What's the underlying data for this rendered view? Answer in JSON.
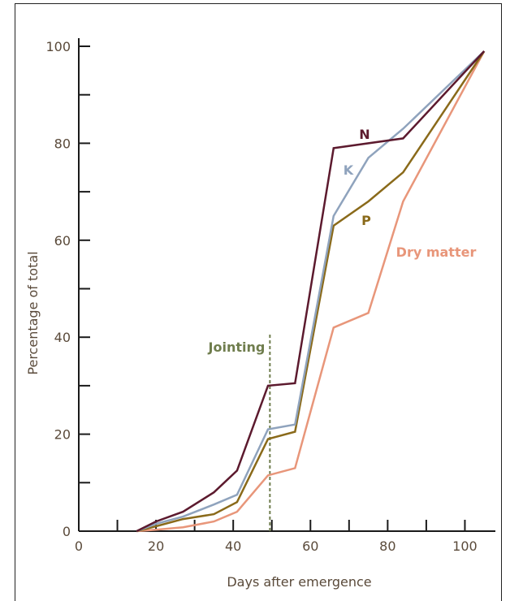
{
  "chart_data": {
    "type": "line",
    "title": "",
    "xlabel": "Days after emergence",
    "ylabel": "Percentage of total",
    "xlim": [
      0,
      110
    ],
    "ylim": [
      0,
      100
    ],
    "xticks": [
      0,
      20,
      40,
      60,
      80,
      100
    ],
    "yticks": [
      0,
      20,
      40,
      60,
      80,
      100
    ],
    "xminor": [
      10,
      30,
      50,
      70,
      90
    ],
    "yminor": [
      10,
      30,
      50,
      70,
      90
    ],
    "grid": false,
    "series": [
      {
        "name": "N",
        "color": "#5c1a2e",
        "x": [
          15,
          20,
          27,
          35,
          41,
          49,
          56,
          66,
          84,
          105
        ],
        "y": [
          0,
          2,
          4,
          8,
          12.5,
          30,
          30.5,
          79,
          81,
          99
        ]
      },
      {
        "name": "K",
        "color": "#8fa3bd",
        "x": [
          15,
          20,
          27,
          35,
          41,
          49,
          56,
          66,
          75,
          84,
          105
        ],
        "y": [
          0,
          1.5,
          3,
          5.5,
          7.5,
          21,
          22,
          65,
          77,
          83,
          99
        ]
      },
      {
        "name": "P",
        "color": "#8a6a1a",
        "x": [
          15,
          20,
          27,
          35,
          41,
          49,
          56,
          66,
          75,
          84,
          105
        ],
        "y": [
          0,
          1,
          2.5,
          3.5,
          6,
          19,
          20.5,
          63,
          68,
          74,
          99
        ]
      },
      {
        "name": "Dry matter",
        "color": "#e8967a",
        "x": [
          15,
          20,
          27,
          35,
          41,
          49,
          56,
          66,
          75,
          84,
          105
        ],
        "y": [
          0,
          0.3,
          0.8,
          2,
          4,
          11.5,
          13,
          42,
          45,
          68,
          99
        ]
      }
    ],
    "annotations": [
      {
        "text": "Jointing",
        "x": 49.5,
        "color": "#6f7d4d",
        "style": "dashed-vertical"
      }
    ]
  }
}
